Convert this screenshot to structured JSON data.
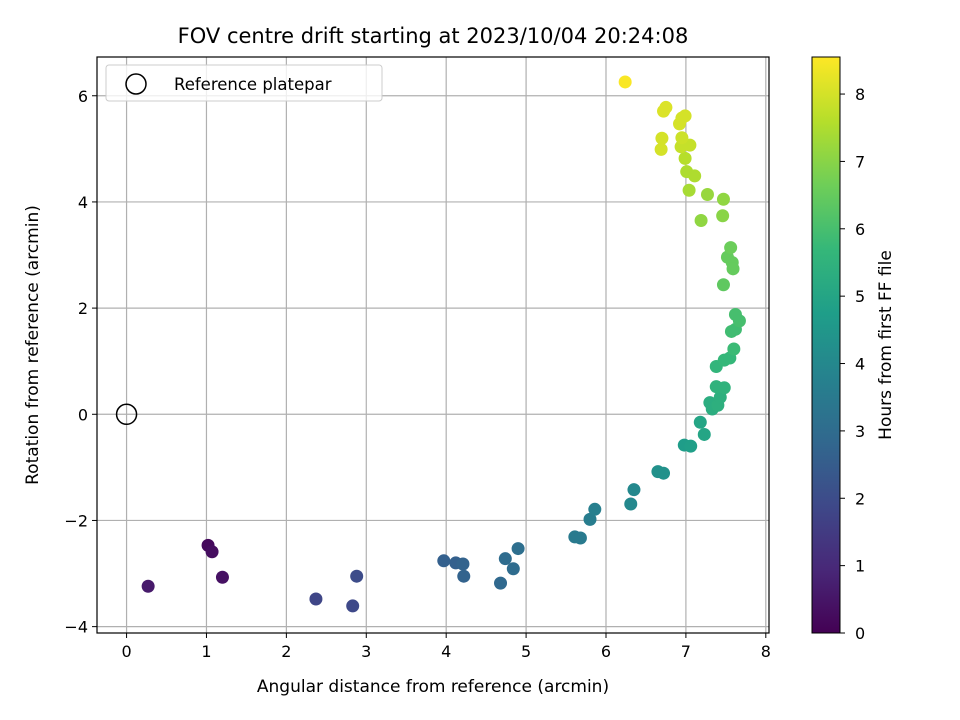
{
  "chart_data": {
    "type": "scatter",
    "title": "FOV centre drift starting at 2023/10/04 20:24:08",
    "xlabel": "Angular distance from reference (arcmin)",
    "ylabel": "Rotation from reference (arcmin)",
    "xlim": [
      -0.37,
      8.04
    ],
    "ylim": [
      -4.12,
      6.73
    ],
    "xticks": [
      0,
      1,
      2,
      3,
      4,
      5,
      6,
      7,
      8
    ],
    "yticks": [
      -4,
      -2,
      0,
      2,
      4,
      6
    ],
    "grid": true,
    "legend": {
      "placement": "top-left",
      "entries": [
        "Reference platepar"
      ]
    },
    "reference_point": {
      "x": 0,
      "y": 0
    },
    "colorbar": {
      "label": "Hours from first FF file",
      "range": [
        0,
        8.55
      ],
      "ticks": [
        0,
        1,
        2,
        3,
        4,
        5,
        6,
        7,
        8
      ],
      "colormap": "viridis"
    },
    "points": [
      {
        "x": 0.27,
        "y": -3.24,
        "c": 0.6
      },
      {
        "x": 1.02,
        "y": -2.47,
        "c": 0.2
      },
      {
        "x": 1.07,
        "y": -2.59,
        "c": 0.3
      },
      {
        "x": 1.2,
        "y": -3.07,
        "c": 0.4
      },
      {
        "x": 2.37,
        "y": -3.48,
        "c": 1.8
      },
      {
        "x": 2.83,
        "y": -3.61,
        "c": 1.9
      },
      {
        "x": 2.88,
        "y": -3.05,
        "c": 2.0
      },
      {
        "x": 3.97,
        "y": -2.76,
        "c": 2.6
      },
      {
        "x": 4.12,
        "y": -2.8,
        "c": 2.6
      },
      {
        "x": 4.21,
        "y": -2.82,
        "c": 2.7
      },
      {
        "x": 4.22,
        "y": -3.05,
        "c": 2.7
      },
      {
        "x": 4.68,
        "y": -3.18,
        "c": 2.9
      },
      {
        "x": 4.74,
        "y": -2.72,
        "c": 3.0
      },
      {
        "x": 4.84,
        "y": -2.91,
        "c": 3.0
      },
      {
        "x": 4.9,
        "y": -2.53,
        "c": 3.1
      },
      {
        "x": 5.61,
        "y": -2.31,
        "c": 3.5
      },
      {
        "x": 5.68,
        "y": -2.33,
        "c": 3.5
      },
      {
        "x": 5.8,
        "y": -1.98,
        "c": 3.6
      },
      {
        "x": 5.86,
        "y": -1.79,
        "c": 3.7
      },
      {
        "x": 6.31,
        "y": -1.69,
        "c": 4.0
      },
      {
        "x": 6.35,
        "y": -1.42,
        "c": 4.0
      },
      {
        "x": 6.65,
        "y": -1.08,
        "c": 4.3
      },
      {
        "x": 6.72,
        "y": -1.11,
        "c": 4.3
      },
      {
        "x": 6.98,
        "y": -0.58,
        "c": 4.7
      },
      {
        "x": 7.06,
        "y": -0.6,
        "c": 4.8
      },
      {
        "x": 7.18,
        "y": -0.15,
        "c": 5.0
      },
      {
        "x": 7.23,
        "y": -0.38,
        "c": 5.0
      },
      {
        "x": 7.3,
        "y": 0.22,
        "c": 5.3
      },
      {
        "x": 7.33,
        "y": 0.1,
        "c": 5.3
      },
      {
        "x": 7.4,
        "y": 0.17,
        "c": 5.4
      },
      {
        "x": 7.43,
        "y": 0.32,
        "c": 5.4
      },
      {
        "x": 7.38,
        "y": 0.52,
        "c": 5.5
      },
      {
        "x": 7.48,
        "y": 0.5,
        "c": 5.5
      },
      {
        "x": 7.38,
        "y": 0.9,
        "c": 5.6
      },
      {
        "x": 7.48,
        "y": 1.02,
        "c": 5.7
      },
      {
        "x": 7.55,
        "y": 1.06,
        "c": 5.7
      },
      {
        "x": 7.6,
        "y": 1.23,
        "c": 5.8
      },
      {
        "x": 7.57,
        "y": 1.56,
        "c": 5.9
      },
      {
        "x": 7.62,
        "y": 1.6,
        "c": 5.9
      },
      {
        "x": 7.62,
        "y": 1.88,
        "c": 6.0
      },
      {
        "x": 7.67,
        "y": 1.76,
        "c": 6.0
      },
      {
        "x": 7.47,
        "y": 2.44,
        "c": 6.4
      },
      {
        "x": 7.52,
        "y": 2.96,
        "c": 6.5
      },
      {
        "x": 7.58,
        "y": 2.86,
        "c": 6.5
      },
      {
        "x": 7.59,
        "y": 2.74,
        "c": 6.5
      },
      {
        "x": 7.56,
        "y": 3.14,
        "c": 6.6
      },
      {
        "x": 7.19,
        "y": 3.65,
        "c": 7.1
      },
      {
        "x": 7.46,
        "y": 3.74,
        "c": 7.0
      },
      {
        "x": 7.27,
        "y": 4.14,
        "c": 7.2
      },
      {
        "x": 7.47,
        "y": 4.05,
        "c": 7.1
      },
      {
        "x": 7.04,
        "y": 4.22,
        "c": 7.4
      },
      {
        "x": 7.01,
        "y": 4.57,
        "c": 7.5
      },
      {
        "x": 7.11,
        "y": 4.49,
        "c": 7.5
      },
      {
        "x": 6.99,
        "y": 4.82,
        "c": 7.6
      },
      {
        "x": 6.69,
        "y": 4.99,
        "c": 8.0
      },
      {
        "x": 6.94,
        "y": 5.04,
        "c": 7.8
      },
      {
        "x": 7.05,
        "y": 5.07,
        "c": 7.8
      },
      {
        "x": 6.7,
        "y": 5.2,
        "c": 8.0
      },
      {
        "x": 6.95,
        "y": 5.21,
        "c": 7.9
      },
      {
        "x": 6.92,
        "y": 5.47,
        "c": 8.0
      },
      {
        "x": 6.95,
        "y": 5.58,
        "c": 8.0
      },
      {
        "x": 6.99,
        "y": 5.62,
        "c": 8.0
      },
      {
        "x": 6.72,
        "y": 5.71,
        "c": 8.1
      },
      {
        "x": 6.75,
        "y": 5.78,
        "c": 8.1
      },
      {
        "x": 6.24,
        "y": 6.26,
        "c": 8.5
      }
    ]
  }
}
